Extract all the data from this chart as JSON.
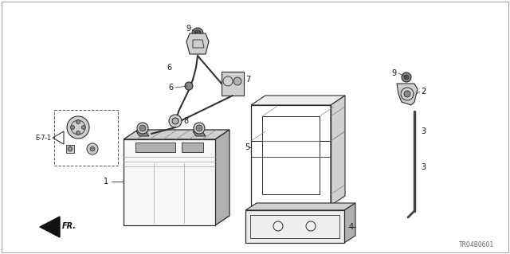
{
  "bg_color": "#ffffff",
  "line_color": "#2a2a2a",
  "gray_light": "#d0d0d0",
  "gray_mid": "#b0b0b0",
  "gray_dark": "#888888",
  "diagram_id": "TR04B0601",
  "fig_w": 6.4,
  "fig_h": 3.19,
  "dpi": 100
}
